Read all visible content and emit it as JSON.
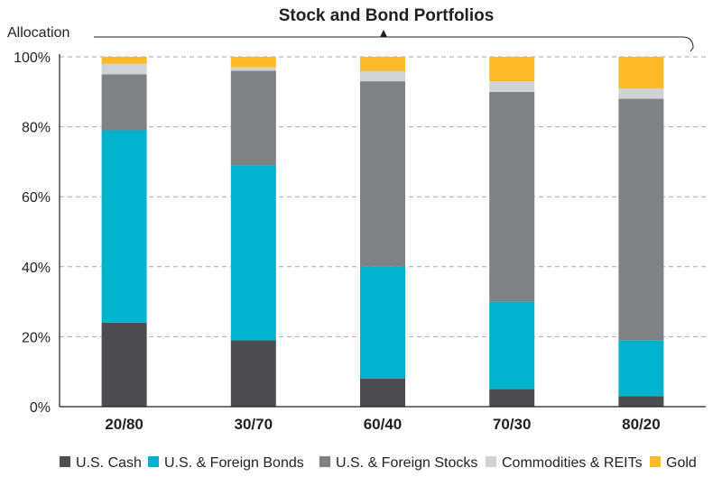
{
  "chart_data": {
    "type": "bar",
    "stacked": true,
    "title": "Stock and Bond Portfolios",
    "ylabel": "Allocation",
    "xlabel": "",
    "ylim": [
      0,
      100
    ],
    "yticks": [
      "0%",
      "20%",
      "40%",
      "60%",
      "80%",
      "100%"
    ],
    "ytick_values": [
      0,
      20,
      40,
      60,
      80,
      100
    ],
    "grid": true,
    "legend_position": "bottom",
    "categories": [
      "20/80",
      "30/70",
      "60/40",
      "70/30",
      "80/20"
    ],
    "series": [
      {
        "name": "U.S. Cash",
        "color": "#4d4d4f",
        "values": [
          24,
          19,
          8,
          5,
          3
        ]
      },
      {
        "name": "U.S. & Foreign Bonds",
        "color": "#00b2cc",
        "values": [
          55,
          50,
          32,
          25,
          16
        ]
      },
      {
        "name": "U.S. & Foreign Stocks",
        "color": "#808184",
        "values": [
          16,
          27,
          53,
          60,
          69
        ]
      },
      {
        "name": "Commodities & REITs",
        "color": "#d1d2d4",
        "values": [
          3,
          1,
          3,
          3,
          3
        ]
      },
      {
        "name": "Gold",
        "color": "#fdb927",
        "values": [
          2,
          3,
          4,
          7,
          9
        ]
      }
    ]
  }
}
